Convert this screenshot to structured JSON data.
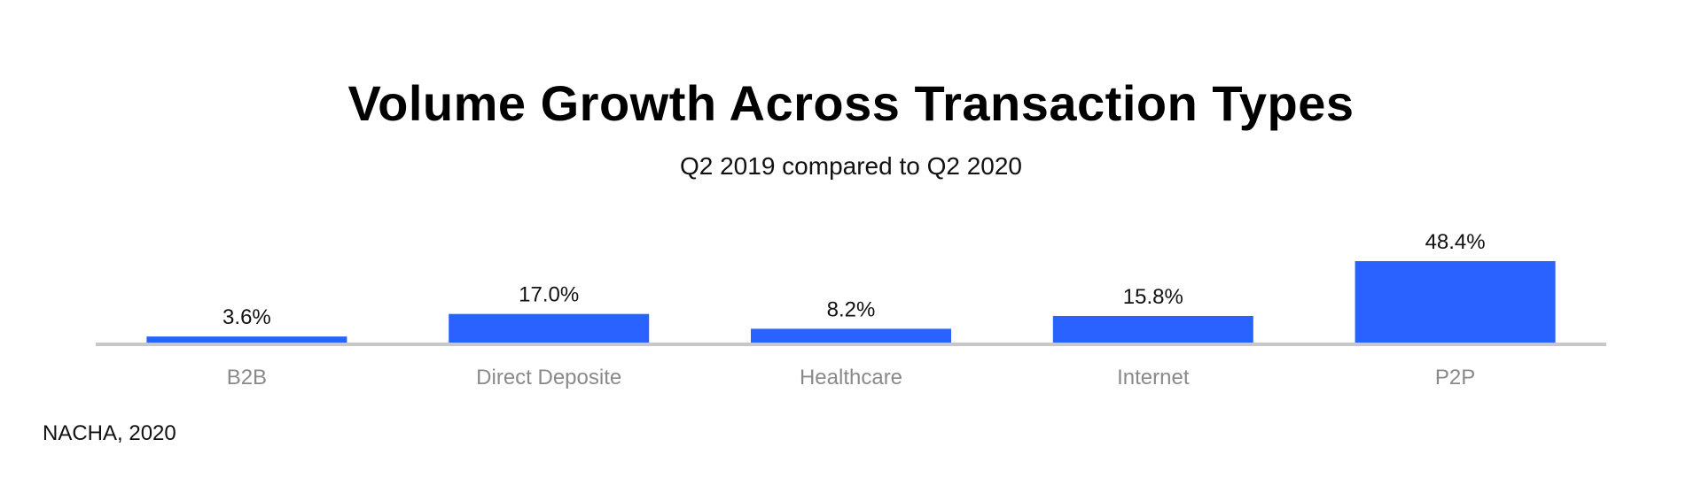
{
  "chart_data": {
    "type": "bar",
    "title": "Volume Growth Across Transaction Types",
    "subtitle": "Q2 2019 compared to Q2 2020",
    "categories": [
      "B2B",
      "Direct Deposite",
      "Healthcare",
      "Internet",
      "P2P"
    ],
    "values": [
      3.6,
      17.0,
      8.2,
      15.8,
      48.4
    ],
    "value_labels": [
      "3.6%",
      "17.0%",
      "8.2%",
      "15.8%",
      "48.4%"
    ],
    "xlabel": "",
    "ylabel": "",
    "ylim": [
      0,
      50
    ],
    "grid": false,
    "bar_color": "#2962ff",
    "axis_color": "#c8c8c8",
    "source": "NACHA, 2020"
  }
}
